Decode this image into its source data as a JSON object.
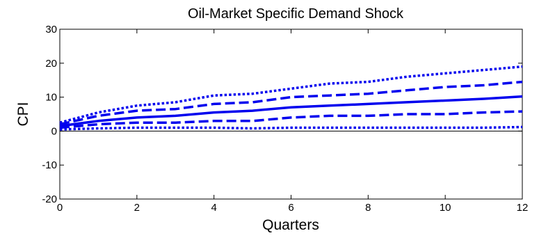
{
  "chart_data": {
    "type": "line",
    "title": "Oil-Market Specific Demand Shock",
    "xlabel": "Quarters",
    "ylabel": "CPI",
    "xlim": [
      0,
      12
    ],
    "ylim": [
      -20,
      30
    ],
    "xticks": [
      0,
      2,
      4,
      6,
      8,
      10,
      12
    ],
    "yticks": [
      -20,
      -10,
      0,
      10,
      20,
      30
    ],
    "grid": false,
    "legend": "none",
    "zero_line": true,
    "x": [
      0,
      1,
      2,
      3,
      4,
      5,
      6,
      7,
      8,
      9,
      10,
      11,
      12
    ],
    "series": [
      {
        "values": [
          1.5,
          3.0,
          4.0,
          4.5,
          5.5,
          6.0,
          7.0,
          7.5,
          8.0,
          8.5,
          9.0,
          9.5,
          10.2
        ],
        "style": "solid",
        "color": "#0000ee"
      },
      {
        "values": [
          2.0,
          4.5,
          6.0,
          6.5,
          8.0,
          8.5,
          10.0,
          10.5,
          11.0,
          12.0,
          13.0,
          13.5,
          14.5
        ],
        "style": "dashed",
        "color": "#0000ee"
      },
      {
        "values": [
          1.0,
          2.0,
          2.5,
          2.5,
          3.0,
          3.0,
          4.0,
          4.5,
          4.5,
          5.0,
          5.0,
          5.5,
          5.8
        ],
        "style": "dashed",
        "color": "#0000ee"
      },
      {
        "values": [
          2.5,
          5.5,
          7.5,
          8.5,
          10.5,
          11.0,
          12.5,
          14.0,
          14.5,
          16.0,
          17.0,
          18.0,
          19.0
        ],
        "style": "dotted",
        "color": "#0000ee"
      },
      {
        "values": [
          0.5,
          0.8,
          1.0,
          1.0,
          1.0,
          0.8,
          1.0,
          1.0,
          1.0,
          1.0,
          1.0,
          1.0,
          1.2
        ],
        "style": "dotted",
        "color": "#0000ee"
      }
    ]
  }
}
